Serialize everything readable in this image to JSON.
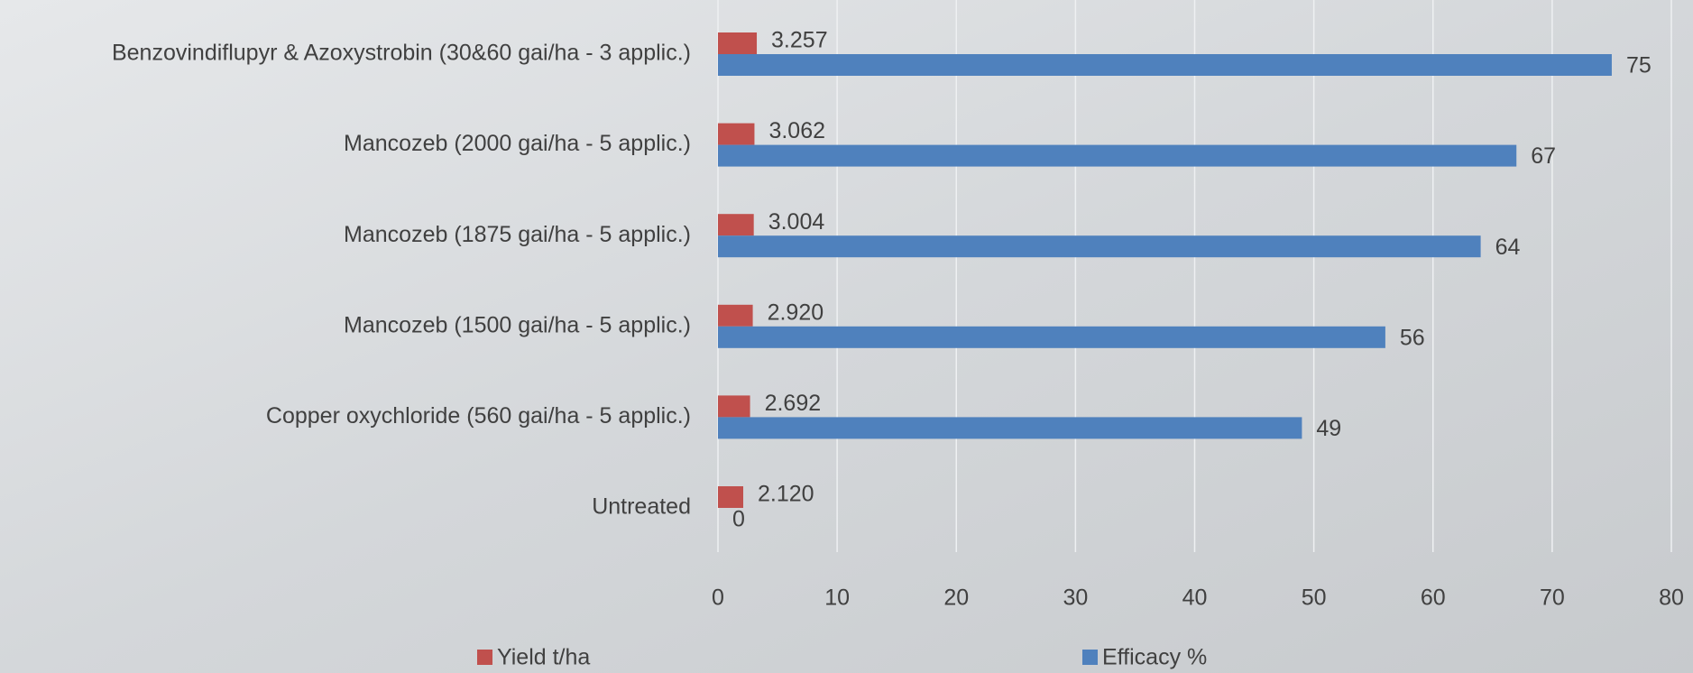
{
  "chart_data": {
    "type": "hbar",
    "categories": [
      "Benzovindiflupyr & Azoxystrobin (30&60 gai/ha - 3 applic.)",
      "Mancozeb (2000 gai/ha - 5 applic.)",
      "Mancozeb (1875 gai/ha - 5 applic.)",
      "Mancozeb (1500 gai/ha - 5 applic.)",
      "Copper oxychloride (560 gai/ha - 5 applic.)",
      "Untreated"
    ],
    "series": [
      {
        "name": "Yield t/ha",
        "color": "#c0504d",
        "values": [
          3.257,
          3.062,
          3.004,
          2.92,
          2.692,
          2.12
        ],
        "value_labels": [
          "3.257",
          "3.062",
          "3.004",
          "2.920",
          "2.692",
          "2.120"
        ]
      },
      {
        "name": "Efficacy %",
        "color": "#4f81bd",
        "values": [
          75,
          67,
          64,
          56,
          49,
          0
        ]
      }
    ],
    "xlim": [
      0,
      80
    ],
    "xticks": [
      0,
      10,
      20,
      30,
      40,
      50,
      60,
      70,
      80
    ],
    "grid": true,
    "legend": "bottom"
  }
}
